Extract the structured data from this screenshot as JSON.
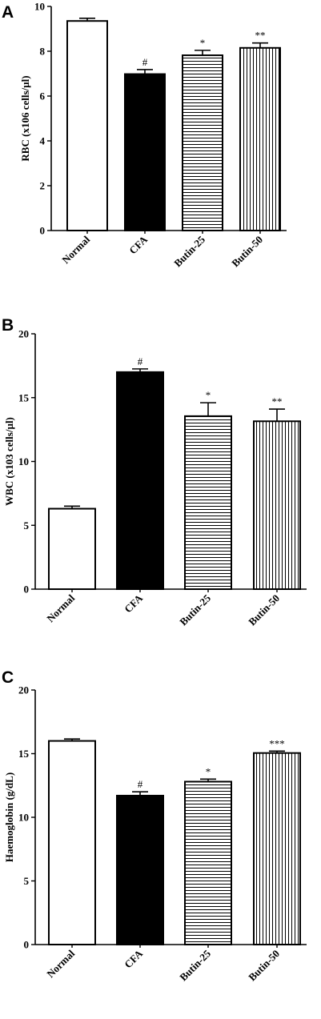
{
  "chart_data": [
    {
      "type": "bar",
      "panel": "A",
      "ylabel": "RBC (x106 cells/µl)",
      "ylim": [
        0,
        10
      ],
      "yticks": [
        0,
        2,
        4,
        6,
        8,
        10
      ],
      "categories": [
        "Normal",
        "CFA",
        "Butin-25",
        "Butin-50"
      ],
      "values": [
        9.35,
        6.98,
        7.82,
        8.15
      ],
      "errors": [
        0.12,
        0.2,
        0.22,
        0.22
      ],
      "annotations": [
        "",
        "#",
        "*",
        "**"
      ],
      "fills": [
        "white",
        "black",
        "hlines",
        "vlines"
      ]
    },
    {
      "type": "bar",
      "panel": "B",
      "ylabel": "WBC (x103 cells/µl)",
      "ylim": [
        0,
        20
      ],
      "yticks": [
        0,
        5,
        10,
        15,
        20
      ],
      "categories": [
        "Normal",
        "CFA",
        "Butin-25",
        "Butin-50"
      ],
      "values": [
        6.3,
        17.0,
        13.55,
        13.15
      ],
      "errors": [
        0.2,
        0.25,
        1.05,
        0.95
      ],
      "annotations": [
        "",
        "#",
        "*",
        "**"
      ],
      "fills": [
        "white",
        "black",
        "hlines",
        "vlines"
      ]
    },
    {
      "type": "bar",
      "panel": "C",
      "ylabel": "Haemoglobin (g/dL)",
      "ylim": [
        0,
        20
      ],
      "yticks": [
        0,
        5,
        10,
        15,
        20
      ],
      "categories": [
        "Normal",
        "CFA",
        "Butin-25",
        "Butin-50"
      ],
      "values": [
        16.0,
        11.7,
        12.8,
        15.05
      ],
      "errors": [
        0.15,
        0.3,
        0.2,
        0.15
      ],
      "annotations": [
        "",
        "#",
        "*",
        "***"
      ],
      "fills": [
        "white",
        "black",
        "hlines",
        "vlines"
      ]
    }
  ],
  "colors": {
    "ink": "#000000",
    "background": "#ffffff"
  }
}
